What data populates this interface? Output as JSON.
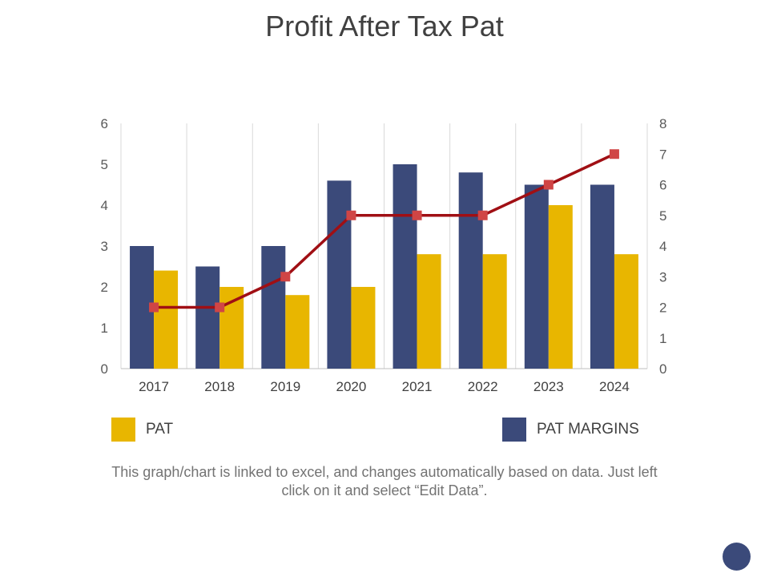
{
  "chart_data": {
    "type": "bar",
    "title": "Profit After Tax Pat",
    "categories": [
      "2017",
      "2018",
      "2019",
      "2020",
      "2021",
      "2022",
      "2023",
      "2024"
    ],
    "series": [
      {
        "name": "PAT MARGINS",
        "type": "bar",
        "axis": "left",
        "color": "#3b4a7a",
        "values": [
          3,
          2.5,
          3,
          4.6,
          5,
          4.8,
          4.5,
          4.5
        ]
      },
      {
        "name": "PAT",
        "type": "bar",
        "axis": "left",
        "color": "#e8b600",
        "values": [
          2.4,
          2,
          1.8,
          2,
          2.8,
          2.8,
          4,
          2.8
        ]
      },
      {
        "name": "",
        "type": "line",
        "axis": "right",
        "color": "#a00f14",
        "marker_color": "#d04545",
        "values": [
          2,
          2,
          3,
          5,
          5,
          5,
          6,
          7
        ]
      }
    ],
    "y_left": {
      "ylim": [
        0,
        6
      ],
      "ticks": [
        "0",
        "1",
        "2",
        "3",
        "4",
        "5",
        "6"
      ]
    },
    "y_right": {
      "ylim": [
        0,
        8
      ],
      "ticks": [
        "0",
        "1",
        "2",
        "3",
        "4",
        "5",
        "6",
        "7",
        "8"
      ]
    },
    "grid": "vertical",
    "legend": [
      {
        "label": "PAT",
        "color": "#e8b600"
      },
      {
        "label": "PAT MARGINS",
        "color": "#3b4a7a"
      }
    ]
  },
  "caption": "This graph/chart is linked to excel, and changes automatically based on data. Just left click on it and select “Edit Data”."
}
